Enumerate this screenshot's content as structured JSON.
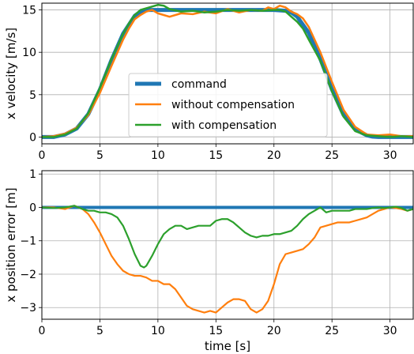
{
  "chart_data": [
    {
      "type": "line",
      "title": "",
      "xlabel": "",
      "ylabel": "x velocity [m/s]",
      "xlim": [
        0,
        32
      ],
      "ylim": [
        -0.8,
        15.8
      ],
      "xticks": [
        0,
        5,
        10,
        15,
        20,
        25,
        30
      ],
      "yticks": [
        0,
        5,
        10,
        15
      ],
      "xtick_labels": [
        "0",
        "5",
        "10",
        "15",
        "20",
        "25",
        "30"
      ],
      "ytick_labels": [
        "0",
        "5",
        "10",
        "15"
      ],
      "grid": true,
      "legend_position": "center",
      "series": [
        {
          "name": "command",
          "color": "#1f77b4",
          "x": [
            0,
            1,
            2,
            3,
            4,
            5,
            6,
            7,
            8,
            8.5,
            9,
            10,
            12,
            15,
            18,
            20,
            21,
            21.5,
            22,
            23,
            24,
            25,
            26,
            27,
            28,
            28.5,
            29,
            30,
            32
          ],
          "y": [
            0,
            0,
            0.3,
            1.0,
            2.7,
            5.6,
            9.1,
            12.2,
            14.3,
            14.8,
            15.0,
            15.0,
            15.0,
            15.0,
            15.0,
            15.0,
            14.9,
            14.7,
            14.2,
            12.3,
            9.2,
            5.6,
            2.6,
            0.9,
            0.2,
            0.05,
            0,
            0,
            0
          ]
        },
        {
          "name": "without compensation",
          "color": "#ff7f0e",
          "x": [
            0,
            1,
            2,
            3,
            4,
            5,
            6,
            7,
            7.5,
            8,
            8.5,
            9,
            9.5,
            10,
            11,
            12,
            13,
            14,
            15,
            16,
            17,
            18,
            19,
            19.5,
            20,
            20.5,
            21,
            21.5,
            22,
            22.5,
            23,
            24,
            25,
            26,
            27,
            28,
            29,
            30,
            31,
            32
          ],
          "y": [
            0,
            0.1,
            0.4,
            1.1,
            2.6,
            5.2,
            8.4,
            11.5,
            12.8,
            13.9,
            14.4,
            14.8,
            15.0,
            14.6,
            14.2,
            14.6,
            14.5,
            14.8,
            14.6,
            15.1,
            14.7,
            15.0,
            14.9,
            15.3,
            15.1,
            15.5,
            15.3,
            14.8,
            14.5,
            14.0,
            13.0,
            10.0,
            6.5,
            3.2,
            1.2,
            0.3,
            0.2,
            0.3,
            0.1,
            0.1
          ]
        },
        {
          "name": "with compensation",
          "color": "#2ca02c",
          "x": [
            0,
            1,
            2,
            3,
            4,
            5,
            6,
            7,
            7.5,
            8,
            8.5,
            9,
            9.5,
            10,
            10.5,
            11,
            12,
            13,
            14,
            15,
            16,
            17,
            18,
            19,
            20,
            20.5,
            21,
            21.5,
            22,
            22.5,
            23,
            24,
            25,
            26,
            27,
            28,
            29,
            30,
            31,
            32
          ],
          "y": [
            0,
            0,
            0.3,
            1.0,
            2.8,
            5.8,
            9.2,
            12.2,
            13.4,
            14.4,
            15.0,
            15.2,
            15.4,
            15.6,
            15.5,
            15.1,
            14.8,
            14.9,
            14.7,
            14.8,
            15.0,
            14.9,
            15.0,
            14.9,
            15.0,
            15.0,
            14.8,
            14.2,
            13.6,
            12.8,
            11.5,
            9.0,
            5.4,
            2.4,
            0.7,
            0.2,
            0.1,
            0,
            0.1,
            0
          ]
        }
      ]
    },
    {
      "type": "line",
      "title": "",
      "xlabel": "time [s]",
      "ylabel": "x position error [m]",
      "xlim": [
        0,
        32
      ],
      "ylim": [
        -3.35,
        1.1
      ],
      "xticks": [
        0,
        5,
        10,
        15,
        20,
        25,
        30
      ],
      "yticks": [
        -3,
        -2,
        -1,
        0,
        1
      ],
      "xtick_labels": [
        "0",
        "5",
        "10",
        "15",
        "20",
        "25",
        "30"
      ],
      "ytick_labels": [
        "−3",
        "−2",
        "−1",
        "0",
        "1"
      ],
      "grid": true,
      "legend_position": "",
      "series": [
        {
          "name": "command",
          "color": "#1f77b4",
          "x": [
            0,
            32
          ],
          "y": [
            0,
            0
          ]
        },
        {
          "name": "without compensation",
          "color": "#ff7f0e",
          "x": [
            0,
            1,
            2,
            2.8,
            3.5,
            4,
            4.5,
            5,
            5.5,
            6,
            6.5,
            7,
            7.5,
            8,
            8.5,
            9,
            9.5,
            10,
            10.5,
            11,
            11.5,
            12,
            12.5,
            13,
            13.5,
            14,
            14.5,
            15,
            15.5,
            16,
            16.5,
            17,
            17.5,
            18,
            18.5,
            19,
            19.5,
            20,
            20.5,
            21,
            21.5,
            22,
            22.5,
            23,
            23.5,
            24,
            24.5,
            25,
            25.5,
            26,
            26.5,
            27,
            27.5,
            28,
            28.5,
            29,
            29.5,
            30,
            30.5,
            31,
            31.5,
            32
          ],
          "y": [
            0,
            0,
            -0.05,
            0.05,
            -0.05,
            -0.2,
            -0.45,
            -0.75,
            -1.1,
            -1.45,
            -1.7,
            -1.9,
            -2.0,
            -2.05,
            -2.05,
            -2.1,
            -2.2,
            -2.2,
            -2.3,
            -2.3,
            -2.45,
            -2.7,
            -2.95,
            -3.05,
            -3.1,
            -3.15,
            -3.1,
            -3.15,
            -3.0,
            -2.85,
            -2.75,
            -2.75,
            -2.8,
            -3.05,
            -3.15,
            -3.05,
            -2.8,
            -2.3,
            -1.7,
            -1.4,
            -1.35,
            -1.3,
            -1.25,
            -1.1,
            -0.9,
            -0.6,
            -0.55,
            -0.5,
            -0.45,
            -0.45,
            -0.45,
            -0.4,
            -0.35,
            -0.3,
            -0.2,
            -0.1,
            -0.05,
            0,
            -0.02,
            -0.05,
            -0.1,
            -0.05
          ]
        },
        {
          "name": "with compensation",
          "color": "#2ca02c",
          "x": [
            0,
            1,
            2,
            2.8,
            3.5,
            4,
            4.5,
            5,
            5.5,
            6,
            6.5,
            7,
            7.5,
            8,
            8.5,
            8.8,
            9,
            9.5,
            10,
            10.5,
            11,
            11.5,
            12,
            12.5,
            13,
            13.5,
            14,
            14.5,
            15,
            15.5,
            16,
            16.5,
            17,
            17.5,
            18,
            18.5,
            19,
            19.5,
            20,
            20.5,
            21,
            21.5,
            22,
            22.5,
            23,
            23.5,
            24,
            24.5,
            25,
            25.5,
            26,
            26.5,
            27,
            27.5,
            28,
            28.5,
            29,
            29.5,
            30,
            30.5,
            31,
            31.5,
            32
          ],
          "y": [
            0,
            -0.02,
            0,
            0.05,
            -0.05,
            -0.1,
            -0.1,
            -0.15,
            -0.15,
            -0.2,
            -0.3,
            -0.55,
            -0.95,
            -1.4,
            -1.75,
            -1.8,
            -1.75,
            -1.45,
            -1.1,
            -0.8,
            -0.65,
            -0.55,
            -0.55,
            -0.65,
            -0.6,
            -0.55,
            -0.55,
            -0.55,
            -0.4,
            -0.35,
            -0.35,
            -0.45,
            -0.6,
            -0.75,
            -0.85,
            -0.9,
            -0.85,
            -0.85,
            -0.8,
            -0.8,
            -0.75,
            -0.7,
            -0.55,
            -0.35,
            -0.2,
            -0.1,
            0,
            -0.15,
            -0.1,
            -0.1,
            -0.1,
            -0.1,
            -0.05,
            -0.05,
            -0.05,
            -0.02,
            0,
            -0.02,
            0,
            0.02,
            -0.02,
            -0.1,
            -0.05
          ]
        }
      ]
    }
  ]
}
